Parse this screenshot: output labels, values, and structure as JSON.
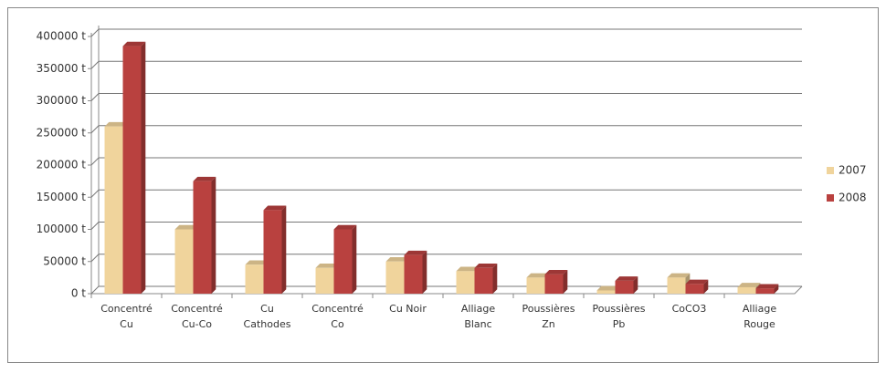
{
  "chart_data": {
    "type": "bar",
    "categories": [
      "Concentré\nCu",
      "Concentré\nCu-Co",
      "Cu\nCathodes",
      "Concentré\nCo",
      "Cu Noir",
      "Alliage\nBlanc",
      "Poussières\nZn",
      "Poussières\nPb",
      "CoCO3",
      "Alliage\nRouge"
    ],
    "series": [
      {
        "name": "2007",
        "color": "#f0d49c",
        "values": [
          260000,
          100000,
          45000,
          40000,
          50000,
          35000,
          25000,
          5000,
          25000,
          10000
        ]
      },
      {
        "name": "2008",
        "color": "#b9413f",
        "values": [
          385000,
          175000,
          130000,
          100000,
          60000,
          40000,
          30000,
          20000,
          15000,
          8000
        ]
      }
    ],
    "ylim": [
      0,
      400000
    ],
    "yticks": [
      {
        "value": 0,
        "label": "0 t"
      },
      {
        "value": 50000,
        "label": "50000 t"
      },
      {
        "value": 100000,
        "label": "100000 t"
      },
      {
        "value": 150000,
        "label": "150000 t"
      },
      {
        "value": 200000,
        "label": "200000 t"
      },
      {
        "value": 250000,
        "label": "250000 t"
      },
      {
        "value": 300000,
        "label": "300000 t"
      },
      {
        "value": 350000,
        "label": "350000 t"
      },
      {
        "value": 400000,
        "label": "400000 t"
      }
    ],
    "grid": true,
    "legend": "right"
  }
}
